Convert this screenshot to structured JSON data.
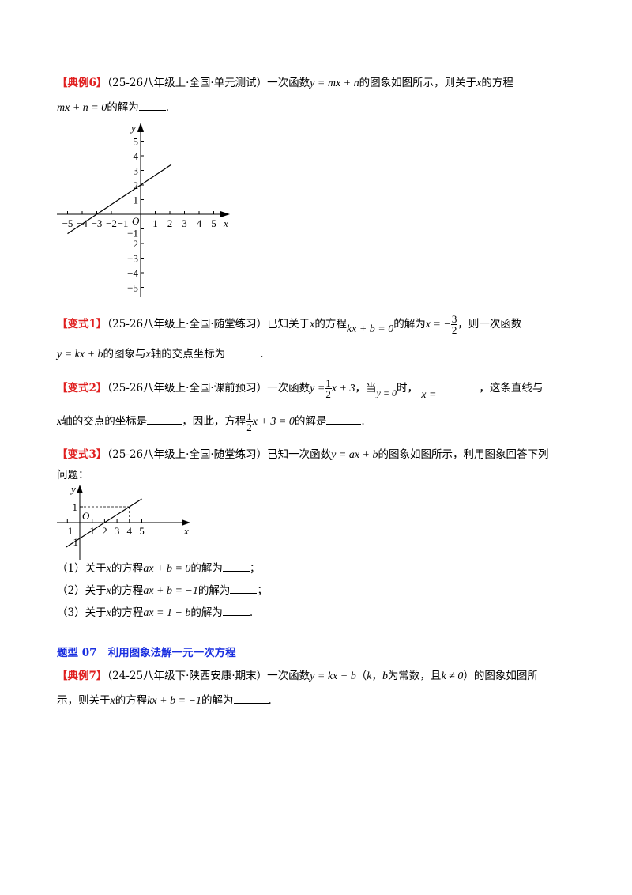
{
  "ex6": {
    "tag": "【典例6】",
    "source": "（25-26八年级上·全国·单元测试）",
    "t1": "一次函数",
    "f1": "y = mx + n",
    "t2": "的图象如图所示，则关于",
    "var": "x",
    "t3": "的方程",
    "eq": "mx + n = 0",
    "t4": "的解为",
    "end": "."
  },
  "v1": {
    "tag": "【变式1】",
    "source": "（25-26八年级上·全国·随堂练习）",
    "t1": "已知关于",
    "var": "x",
    "t2": "的方程",
    "eq": "kx + b = 0",
    "t3": "的解为",
    "sol_lhs": "x = −",
    "sol_num": "3",
    "sol_den": "2",
    "t4": "，则一次函数",
    "f": "y = kx + b",
    "t5": "的图象与",
    "t6": "轴的交点坐标为",
    "end": "."
  },
  "v2": {
    "tag": "【变式2】",
    "source": "（25-26八年级上·全国·课前预习）",
    "t1": "一次函数",
    "f_lhs": "y =",
    "f_num": "1",
    "f_den": "2",
    "f_rhs": "x + 3",
    "t2": "，当",
    "cond": "y = 0",
    "t3": "时，",
    "xeq": "x =",
    "t4": "，这条直线与",
    "var": "x",
    "t5": "轴的交点的坐标是",
    "t6": "，因此，方程",
    "eq_rhs": "x + 3 = 0",
    "t7": "的解是",
    "end": "."
  },
  "v3": {
    "tag": "【变式3】",
    "source": "（25-26八年级上·全国·随堂练习）",
    "t1": "已知一次函数",
    "f": "y = ax + b",
    "t2": "的图象如图所示，利用图象回答下列",
    "t3": "问题：",
    "questions": [
      {
        "num": "（1）",
        "pre": "关于",
        "var": "x",
        "mid": "的方程",
        "eq": "ax + b = 0",
        "post": "的解为",
        "end": "；"
      },
      {
        "num": "（2）",
        "pre": "关于",
        "var": "x",
        "mid": "的方程",
        "eq": "ax + b = −1",
        "post": "的解为",
        "end": "；"
      },
      {
        "num": "（3）",
        "pre": "关于",
        "var": "x",
        "mid": "的方程",
        "eq": "ax = 1 − b",
        "post": "的解为",
        "end": "."
      }
    ]
  },
  "section": {
    "label": "题型 07",
    "title": "利用图象法解一元一次方程",
    "color": "#1a2fe0"
  },
  "ex7": {
    "tag": "【典例7】",
    "source": "（24-25八年级下·陕西安康·期末）",
    "t1": "一次函数",
    "f": "y = kx + b",
    "t2": "（",
    "k": "k",
    "t3": "，",
    "b": "b",
    "t4": "为常数，且",
    "cond": "k ≠ 0",
    "t5": "）的图象如图所",
    "t6": "示，则关于",
    "var": "x",
    "t7": "的方程",
    "eq": "kx + b = −1",
    "t8": "的解为",
    "end": "."
  },
  "graph1": {
    "type": "line",
    "xlabel": "x",
    "ylabel": "y",
    "origin": "O",
    "xticks": [
      "−5",
      "−4",
      "−3",
      "−2",
      "−1",
      "1",
      "2",
      "3",
      "4",
      "5"
    ],
    "yticks": [
      "5",
      "4",
      "3",
      "2",
      "1",
      "−1",
      "−2",
      "−3",
      "−4",
      "−5"
    ],
    "xrange": [
      -5,
      5
    ],
    "yrange": [
      -5,
      5
    ],
    "line": {
      "slope": 0.6667,
      "intercept": 2,
      "x_from": -5,
      "x_to": 2.1
    }
  },
  "graph2": {
    "type": "line",
    "xlabel": "x",
    "ylabel": "y",
    "origin": "O",
    "xticks": [
      "−1",
      "1",
      "2",
      "3",
      "4",
      "5"
    ],
    "yticks": [
      "1",
      "−1"
    ],
    "line": {
      "slope": 0.5,
      "intercept": -1,
      "x_from": -1.1,
      "x_to": 5
    },
    "guide_point": [
      4,
      1
    ]
  },
  "colors": {
    "tag": "#e02020",
    "heading": "#1a2fe0"
  }
}
